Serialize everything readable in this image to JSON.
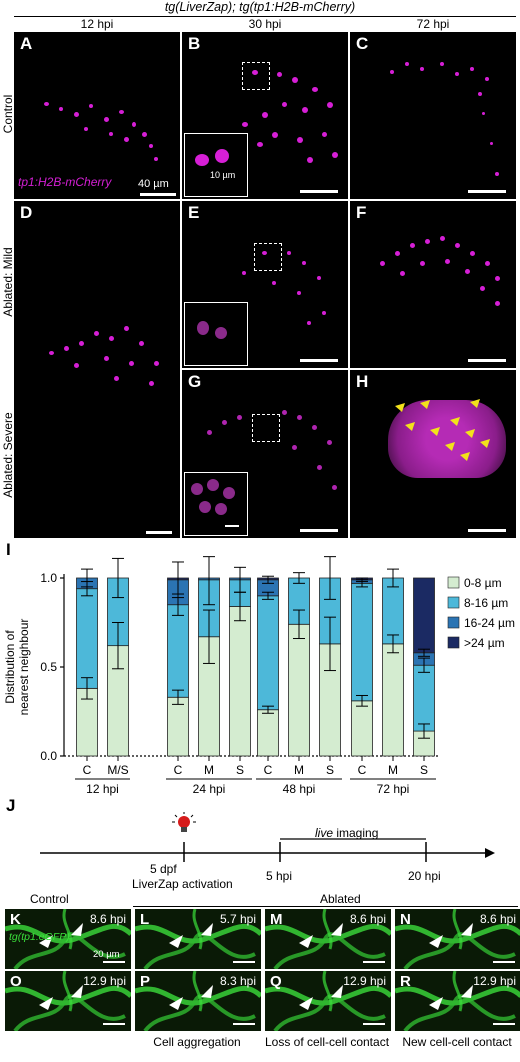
{
  "header": {
    "title": "tg(LiverZap); tg(tp1:H2B-mCherry)",
    "cols": [
      "12 hpi",
      "30 hpi",
      "72 hpi"
    ]
  },
  "rows": {
    "control": "Control",
    "mild": "Ablated: Mild",
    "severe": "Ablated: Severe"
  },
  "panels": {
    "A": "A",
    "B": "B",
    "C": "C",
    "D": "D",
    "E": "E",
    "F": "F",
    "G": "G",
    "H": "H",
    "marker": "tp1:H2B-mCherry",
    "scale_main": "40 µm",
    "scale_inset": "10 µm"
  },
  "panel_I": {
    "letter": "I"
  },
  "chart_data": {
    "type": "bar",
    "stacked": true,
    "ylabel": "Distribution of\nnearest neighbour",
    "ylim": [
      0,
      1.0
    ],
    "yticks": [
      "0.0",
      "0.5",
      "1.0"
    ],
    "categories": [
      "C",
      "M/S",
      "C",
      "M",
      "S",
      "C",
      "M",
      "S",
      "C",
      "M",
      "S"
    ],
    "groups": [
      {
        "label": "12 hpi",
        "bars": [
          0,
          1
        ]
      },
      {
        "label": "24 hpi",
        "bars": [
          2,
          3,
          4
        ]
      },
      {
        "label": "48 hpi",
        "bars": [
          5,
          6,
          7
        ]
      },
      {
        "label": "72 hpi",
        "bars": [
          8,
          9,
          10
        ]
      }
    ],
    "series": [
      {
        "name": "0-8 µm",
        "color": "#d4ecd0",
        "values": [
          0.38,
          0.62,
          0.33,
          0.67,
          0.84,
          0.26,
          0.74,
          0.63,
          0.31,
          0.63,
          0.14
        ],
        "err": [
          0.06,
          0.13,
          0.04,
          0.15,
          0.08,
          0.02,
          0.08,
          0.15,
          0.03,
          0.05,
          0.04
        ]
      },
      {
        "name": "8-16 µm",
        "color": "#4db8d9",
        "values": [
          0.56,
          0.38,
          0.52,
          0.32,
          0.15,
          0.64,
          0.26,
          0.37,
          0.66,
          0.37,
          0.37
        ],
        "err": [
          0.04,
          0.11,
          0.06,
          0.14,
          0.07,
          0.02,
          0.03,
          0.12,
          0.02,
          0.05,
          0.04
        ]
      },
      {
        "name": "16-24 µm",
        "color": "#2b74b3",
        "values": [
          0.06,
          0.0,
          0.14,
          0.01,
          0.01,
          0.09,
          0.0,
          0.0,
          0.02,
          0.0,
          0.07
        ],
        "err": [
          0.05,
          0.0,
          0.1,
          0.0,
          0.0,
          0.02,
          0.0,
          0.0,
          0.01,
          0.0,
          0.02
        ]
      },
      {
        "name": ">24 µm",
        "color": "#1b2a63",
        "values": [
          0.0,
          0.0,
          0.01,
          0.0,
          0.0,
          0.01,
          0.0,
          0.0,
          0.01,
          0.0,
          0.42
        ],
        "err": [
          0,
          0,
          0,
          0,
          0,
          0,
          0,
          0,
          0,
          0,
          0
        ]
      }
    ]
  },
  "panel_J": {
    "letter": "J",
    "dpf": "5 dpf",
    "activation": "LiverZap activation",
    "t5": "5 hpi",
    "t20": "20 hpi",
    "live": "live",
    "imaging": " imaging"
  },
  "bottom": {
    "control": "Control",
    "ablated": "Ablated",
    "marker": "tg(tp1:eGFP)",
    "scale": "20 µm",
    "K": "K",
    "L": "L",
    "M": "M",
    "N": "N",
    "O": "O",
    "P": "P",
    "Q": "Q",
    "R": "R",
    "tK": "8.6 hpi",
    "tL": "5.7 hpi",
    "tM": "8.6 hpi",
    "tN": "8.6 hpi",
    "tO": "12.9 hpi",
    "tP": "8.3 hpi",
    "tQ": "12.9 hpi",
    "tR": "12.9 hpi",
    "cap1": "Cell aggregation",
    "cap2": "Loss of cell-cell contact",
    "cap3": "New cell-cell contact"
  },
  "colors": {
    "magenta": "#d61fd6",
    "green": "#3be03b",
    "arrow_yellow": "#f2e21b"
  }
}
